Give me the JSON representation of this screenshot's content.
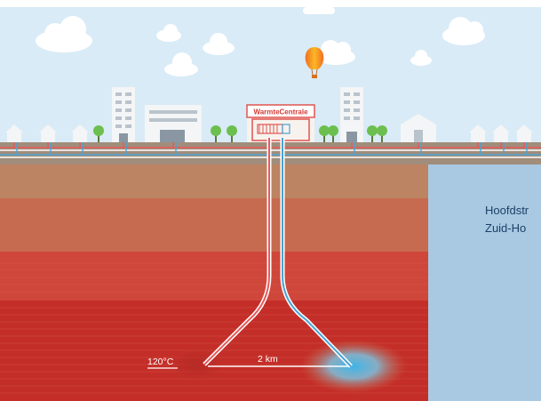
{
  "plant_sign": "WarmteCentrale",
  "temperature_label": "120°C",
  "distance_label": "2 km",
  "side_panel": {
    "line1": "Hoofdstr",
    "line2": "Zuid-Ho"
  },
  "colors": {
    "sky": "#d9ebf6",
    "ground": "#a18d7b",
    "layer_top": "#bc8462",
    "layer_deep": "#c42e28",
    "hot_pipe": "#e8595a",
    "cold_pipe": "#4aa3d6",
    "panel": "#a9c9e3",
    "sign_text": "#d63b37",
    "balloon": "#f6a21e"
  }
}
